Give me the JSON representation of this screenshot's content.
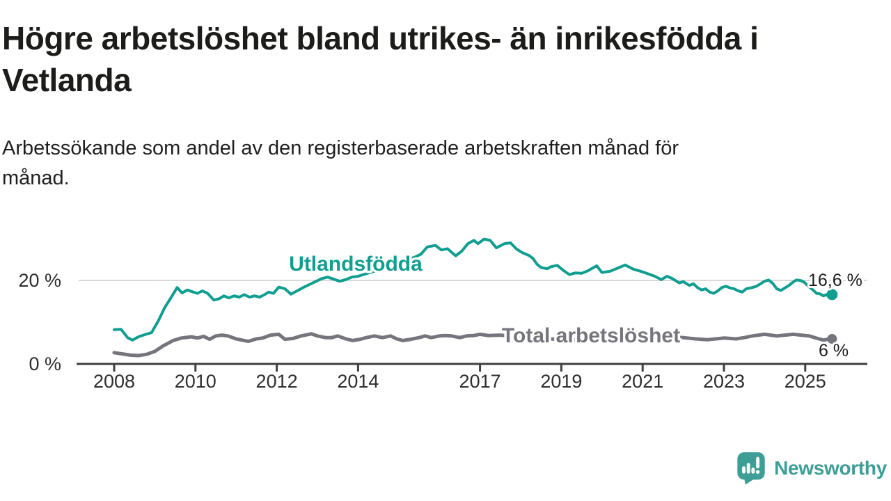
{
  "header": {
    "title": "Högre arbetslöshet bland utrikes- än inrikesfödda i Vetlanda",
    "title_lines": [
      "Högre arbetslöshet bland utrikes- än inrikesfödda i",
      "Vetlanda"
    ],
    "subtitle": "Arbetssökande som andel av den registerbaserade arbetskraften månad för månad.",
    "subtitle_lines": [
      "Arbetssökande som andel av den registerbaserade arbetskraften månad för",
      "månad."
    ]
  },
  "logo": {
    "text": "Newsworthy",
    "color": "#3d9e96",
    "icon": "bar-chart-speech-bubble-icon"
  },
  "chart_data": {
    "type": "line",
    "title": "Högre arbetslöshet bland utrikes- än inrikesfödda i Vetlanda",
    "subtitle": "Arbetssökande som andel av den registerbaserade arbetskraften månad för månad.",
    "xlabel": "",
    "ylabel": "",
    "grid": "single horizontal gridline at 20 %",
    "legend_position": "inline labels on lines",
    "xlim": [
      2007.1,
      2026.5
    ],
    "ylim": [
      0,
      32
    ],
    "x_ticks": [
      "2008",
      "2010",
      "2012",
      "2014",
      "2017",
      "2019",
      "2021",
      "2023",
      "2025"
    ],
    "x_tick_years": [
      2008,
      2010,
      2012,
      2014,
      2017,
      2019,
      2021,
      2023,
      2025
    ],
    "y_ticks": [
      {
        "value": 0,
        "label": "0 %"
      },
      {
        "value": 20,
        "label": "20 %"
      }
    ],
    "axis_color": "#3f3f3f",
    "grid_color": "#d9d9d9",
    "series": [
      {
        "name": "Utlandsfödda",
        "color": "#0f9e90",
        "end_label": "16,6 %",
        "end_value": 16.6,
        "points": [
          [
            2008.0,
            8.2
          ],
          [
            2008.17,
            8.3
          ],
          [
            2008.33,
            6.3
          ],
          [
            2008.45,
            5.7
          ],
          [
            2008.6,
            6.5
          ],
          [
            2008.75,
            7.0
          ],
          [
            2008.92,
            7.5
          ],
          [
            2009.08,
            10.2
          ],
          [
            2009.25,
            13.6
          ],
          [
            2009.42,
            16.2
          ],
          [
            2009.55,
            18.3
          ],
          [
            2009.67,
            17.0
          ],
          [
            2009.8,
            17.7
          ],
          [
            2009.92,
            17.3
          ],
          [
            2010.05,
            16.9
          ],
          [
            2010.17,
            17.5
          ],
          [
            2010.3,
            16.9
          ],
          [
            2010.45,
            15.3
          ],
          [
            2010.58,
            15.6
          ],
          [
            2010.7,
            16.3
          ],
          [
            2010.82,
            15.8
          ],
          [
            2010.95,
            16.3
          ],
          [
            2011.08,
            16.0
          ],
          [
            2011.2,
            16.6
          ],
          [
            2011.33,
            16.0
          ],
          [
            2011.45,
            16.3
          ],
          [
            2011.58,
            16.0
          ],
          [
            2011.7,
            16.6
          ],
          [
            2011.8,
            17.2
          ],
          [
            2011.92,
            16.9
          ],
          [
            2012.05,
            18.4
          ],
          [
            2012.2,
            18.0
          ],
          [
            2012.35,
            16.7
          ],
          [
            2012.5,
            17.5
          ],
          [
            2012.65,
            18.3
          ],
          [
            2012.8,
            19.0
          ],
          [
            2012.95,
            19.7
          ],
          [
            2013.1,
            20.4
          ],
          [
            2013.25,
            20.8
          ],
          [
            2013.4,
            20.3
          ],
          [
            2013.55,
            19.8
          ],
          [
            2013.7,
            20.2
          ],
          [
            2013.85,
            20.8
          ],
          [
            2014.0,
            21.0
          ],
          [
            2014.2,
            21.6
          ],
          [
            2014.4,
            22.2
          ],
          [
            2014.6,
            22.8
          ],
          [
            2014.8,
            23.4
          ],
          [
            2015.0,
            24.2
          ],
          [
            2015.2,
            24.9
          ],
          [
            2015.4,
            25.6
          ],
          [
            2015.55,
            26.3
          ],
          [
            2015.7,
            28.0
          ],
          [
            2015.9,
            28.4
          ],
          [
            2016.05,
            27.3
          ],
          [
            2016.2,
            27.6
          ],
          [
            2016.4,
            25.9
          ],
          [
            2016.55,
            27.0
          ],
          [
            2016.7,
            28.8
          ],
          [
            2016.85,
            29.6
          ],
          [
            2016.95,
            28.8
          ],
          [
            2017.1,
            29.9
          ],
          [
            2017.25,
            29.6
          ],
          [
            2017.4,
            27.8
          ],
          [
            2017.6,
            28.8
          ],
          [
            2017.75,
            29.0
          ],
          [
            2017.9,
            27.5
          ],
          [
            2018.05,
            26.6
          ],
          [
            2018.2,
            26.0
          ],
          [
            2018.3,
            25.3
          ],
          [
            2018.4,
            23.9
          ],
          [
            2018.5,
            23.1
          ],
          [
            2018.65,
            22.8
          ],
          [
            2018.75,
            23.3
          ],
          [
            2018.9,
            23.6
          ],
          [
            2019.05,
            22.4
          ],
          [
            2019.2,
            21.4
          ],
          [
            2019.35,
            21.8
          ],
          [
            2019.5,
            21.7
          ],
          [
            2019.65,
            22.3
          ],
          [
            2019.87,
            23.5
          ],
          [
            2020.0,
            21.9
          ],
          [
            2020.2,
            22.2
          ],
          [
            2020.4,
            23.0
          ],
          [
            2020.57,
            23.7
          ],
          [
            2020.77,
            22.7
          ],
          [
            2020.95,
            22.2
          ],
          [
            2021.1,
            21.7
          ],
          [
            2021.3,
            21.0
          ],
          [
            2021.46,
            20.2
          ],
          [
            2021.6,
            21.0
          ],
          [
            2021.72,
            20.5
          ],
          [
            2021.9,
            19.4
          ],
          [
            2022.0,
            19.7
          ],
          [
            2022.15,
            18.8
          ],
          [
            2022.25,
            19.2
          ],
          [
            2022.35,
            18.3
          ],
          [
            2022.45,
            17.7
          ],
          [
            2022.55,
            18.0
          ],
          [
            2022.65,
            17.2
          ],
          [
            2022.75,
            16.9
          ],
          [
            2022.85,
            17.5
          ],
          [
            2022.95,
            18.3
          ],
          [
            2023.05,
            18.6
          ],
          [
            2023.15,
            18.2
          ],
          [
            2023.25,
            18.0
          ],
          [
            2023.35,
            17.5
          ],
          [
            2023.45,
            17.2
          ],
          [
            2023.55,
            18.0
          ],
          [
            2023.7,
            18.3
          ],
          [
            2023.8,
            18.6
          ],
          [
            2023.9,
            19.2
          ],
          [
            2024.0,
            19.8
          ],
          [
            2024.1,
            20.1
          ],
          [
            2024.2,
            19.3
          ],
          [
            2024.3,
            18.0
          ],
          [
            2024.4,
            17.6
          ],
          [
            2024.5,
            18.2
          ],
          [
            2024.6,
            18.8
          ],
          [
            2024.7,
            19.6
          ],
          [
            2024.78,
            20.1
          ],
          [
            2024.88,
            20.0
          ],
          [
            2024.97,
            19.6
          ],
          [
            2025.08,
            18.6
          ],
          [
            2025.18,
            17.8
          ],
          [
            2025.28,
            16.9
          ],
          [
            2025.36,
            16.8
          ],
          [
            2025.45,
            16.3
          ],
          [
            2025.52,
            16.6
          ],
          [
            2025.58,
            16.1
          ],
          [
            2025.66,
            16.6
          ]
        ]
      },
      {
        "name": "Total arbetslöshet",
        "color": "#75757d",
        "end_label": "6 %",
        "end_value": 6.0,
        "points": [
          [
            2008.0,
            2.7
          ],
          [
            2008.2,
            2.4
          ],
          [
            2008.4,
            2.1
          ],
          [
            2008.6,
            2.0
          ],
          [
            2008.8,
            2.3
          ],
          [
            2009.0,
            3.0
          ],
          [
            2009.2,
            4.3
          ],
          [
            2009.45,
            5.6
          ],
          [
            2009.65,
            6.2
          ],
          [
            2009.9,
            6.5
          ],
          [
            2010.05,
            6.2
          ],
          [
            2010.2,
            6.6
          ],
          [
            2010.35,
            5.9
          ],
          [
            2010.5,
            6.7
          ],
          [
            2010.65,
            6.9
          ],
          [
            2010.8,
            6.7
          ],
          [
            2011.0,
            6.0
          ],
          [
            2011.15,
            5.7
          ],
          [
            2011.3,
            5.4
          ],
          [
            2011.5,
            6.0
          ],
          [
            2011.65,
            6.2
          ],
          [
            2011.85,
            6.9
          ],
          [
            2012.05,
            7.1
          ],
          [
            2012.2,
            5.9
          ],
          [
            2012.4,
            6.1
          ],
          [
            2012.6,
            6.7
          ],
          [
            2012.85,
            7.2
          ],
          [
            2013.0,
            6.7
          ],
          [
            2013.2,
            6.3
          ],
          [
            2013.35,
            6.3
          ],
          [
            2013.5,
            6.7
          ],
          [
            2013.7,
            6.0
          ],
          [
            2013.87,
            5.6
          ],
          [
            2014.05,
            5.9
          ],
          [
            2014.2,
            6.3
          ],
          [
            2014.4,
            6.7
          ],
          [
            2014.6,
            6.3
          ],
          [
            2014.8,
            6.7
          ],
          [
            2014.95,
            6.0
          ],
          [
            2015.1,
            5.6
          ],
          [
            2015.3,
            5.9
          ],
          [
            2015.5,
            6.3
          ],
          [
            2015.65,
            6.7
          ],
          [
            2015.8,
            6.3
          ],
          [
            2016.0,
            6.7
          ],
          [
            2016.15,
            6.8
          ],
          [
            2016.3,
            6.7
          ],
          [
            2016.5,
            6.3
          ],
          [
            2016.67,
            6.7
          ],
          [
            2016.85,
            6.8
          ],
          [
            2017.0,
            7.1
          ],
          [
            2017.2,
            6.8
          ],
          [
            2017.5,
            6.9
          ],
          [
            2017.8,
            6.6
          ],
          [
            2018.1,
            6.4
          ],
          [
            2018.5,
            6.1
          ],
          [
            2018.9,
            5.9
          ],
          [
            2019.3,
            5.8
          ],
          [
            2019.7,
            6.0
          ],
          [
            2020.1,
            6.6
          ],
          [
            2020.4,
            7.4
          ],
          [
            2020.7,
            7.6
          ],
          [
            2021.0,
            7.4
          ],
          [
            2021.4,
            7.0
          ],
          [
            2021.8,
            6.5
          ],
          [
            2022.1,
            6.2
          ],
          [
            2022.3,
            6.0
          ],
          [
            2022.6,
            5.8
          ],
          [
            2022.8,
            6.0
          ],
          [
            2023.0,
            6.2
          ],
          [
            2023.3,
            6.0
          ],
          [
            2023.5,
            6.3
          ],
          [
            2023.7,
            6.7
          ],
          [
            2024.0,
            7.1
          ],
          [
            2024.3,
            6.7
          ],
          [
            2024.5,
            6.9
          ],
          [
            2024.7,
            7.1
          ],
          [
            2024.9,
            6.9
          ],
          [
            2025.1,
            6.7
          ],
          [
            2025.3,
            6.1
          ],
          [
            2025.45,
            5.7
          ],
          [
            2025.55,
            5.9
          ],
          [
            2025.66,
            6.0
          ]
        ]
      }
    ]
  }
}
